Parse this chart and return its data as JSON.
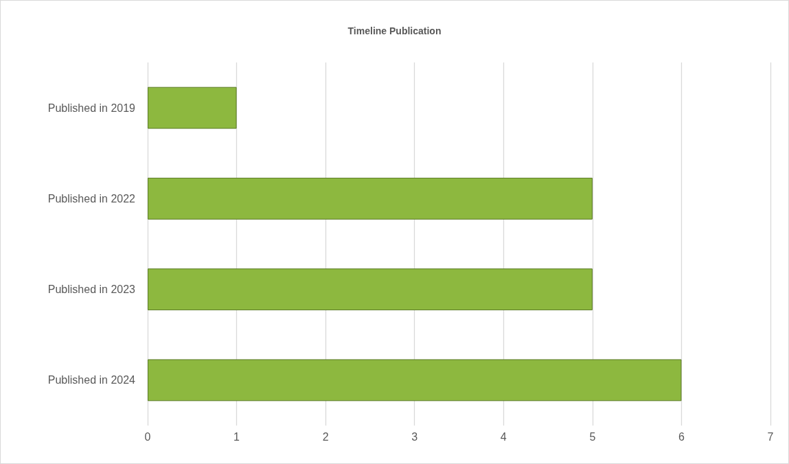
{
  "chart_data": {
    "type": "bar",
    "title": "Timeline Publication",
    "orientation": "horizontal",
    "categories": [
      "Published in 2019",
      "Published in 2022",
      "Published in 2023",
      "Published in 2024"
    ],
    "values": [
      1,
      5,
      5,
      6
    ],
    "color": "#8db83f",
    "xlim": [
      0,
      7
    ],
    "xticks": [
      0,
      1,
      2,
      3,
      4,
      5,
      6,
      7
    ],
    "grid": "x"
  }
}
